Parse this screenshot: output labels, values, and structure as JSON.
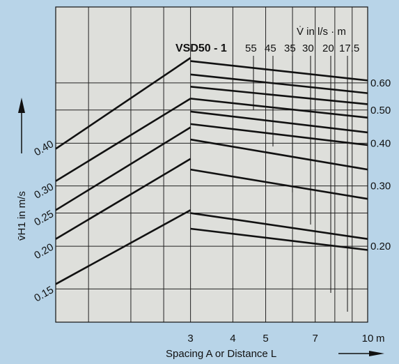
{
  "chart_data": {
    "type": "line",
    "title": "",
    "model_label": "VSD50 - 1",
    "flow_header": "V̇ in l/s · m",
    "flow_values": [
      "55",
      "45",
      "35",
      "30",
      "20",
      "17.5"
    ],
    "xlabel": "Spacing A or Distance L",
    "ylabel": "v̄H1 in m/s",
    "x_scale": "log",
    "xlim": [
      1.2,
      10
    ],
    "ylim": [
      0.12,
      1.0
    ],
    "x_ticks": [
      "3",
      "4",
      "5",
      "7",
      "10"
    ],
    "x_unit": "m",
    "left_ticks": [
      "0.15",
      "0.20",
      "0.25",
      "0.30",
      "0.40"
    ],
    "right_ticks": [
      "0.60",
      "0.50",
      "0.40",
      "0.30",
      "0.20"
    ],
    "background_color": "#b8d4e8",
    "plot_color": "#dedfdb",
    "line_color": "#111111",
    "rising_lines": [
      {
        "name": "r1",
        "x": [
          1.2,
          3
        ],
        "y": [
          0.155,
          0.255
        ]
      },
      {
        "name": "r2",
        "x": [
          1.2,
          3
        ],
        "y": [
          0.21,
          0.36
        ]
      },
      {
        "name": "r3",
        "x": [
          1.2,
          3
        ],
        "y": [
          0.255,
          0.445
        ]
      },
      {
        "name": "r4",
        "x": [
          1.2,
          3
        ],
        "y": [
          0.31,
          0.54
        ]
      },
      {
        "name": "r5",
        "x": [
          1.2,
          3
        ],
        "y": [
          0.385,
          0.71
        ]
      }
    ],
    "falling_lines": [
      {
        "name": "f1",
        "x": [
          3,
          10
        ],
        "y": [
          0.695,
          0.61
        ]
      },
      {
        "name": "f2",
        "x": [
          3,
          10
        ],
        "y": [
          0.635,
          0.56
        ]
      },
      {
        "name": "f3",
        "x": [
          3,
          10
        ],
        "y": [
          0.585,
          0.52
        ]
      },
      {
        "name": "f4",
        "x": [
          3,
          10
        ],
        "y": [
          0.54,
          0.475
        ]
      },
      {
        "name": "f5",
        "x": [
          3,
          10
        ],
        "y": [
          0.495,
          0.43
        ]
      },
      {
        "name": "f6",
        "x": [
          3,
          10
        ],
        "y": [
          0.455,
          0.395
        ]
      },
      {
        "name": "f7",
        "x": [
          3,
          10
        ],
        "y": [
          0.41,
          0.335
        ]
      },
      {
        "name": "f8",
        "x": [
          3,
          10
        ],
        "y": [
          0.335,
          0.275
        ]
      },
      {
        "name": "f9",
        "x": [
          3,
          10
        ],
        "y": [
          0.25,
          0.21
        ]
      },
      {
        "name": "f10",
        "x": [
          3,
          10
        ],
        "y": [
          0.225,
          0.195
        ]
      }
    ]
  }
}
